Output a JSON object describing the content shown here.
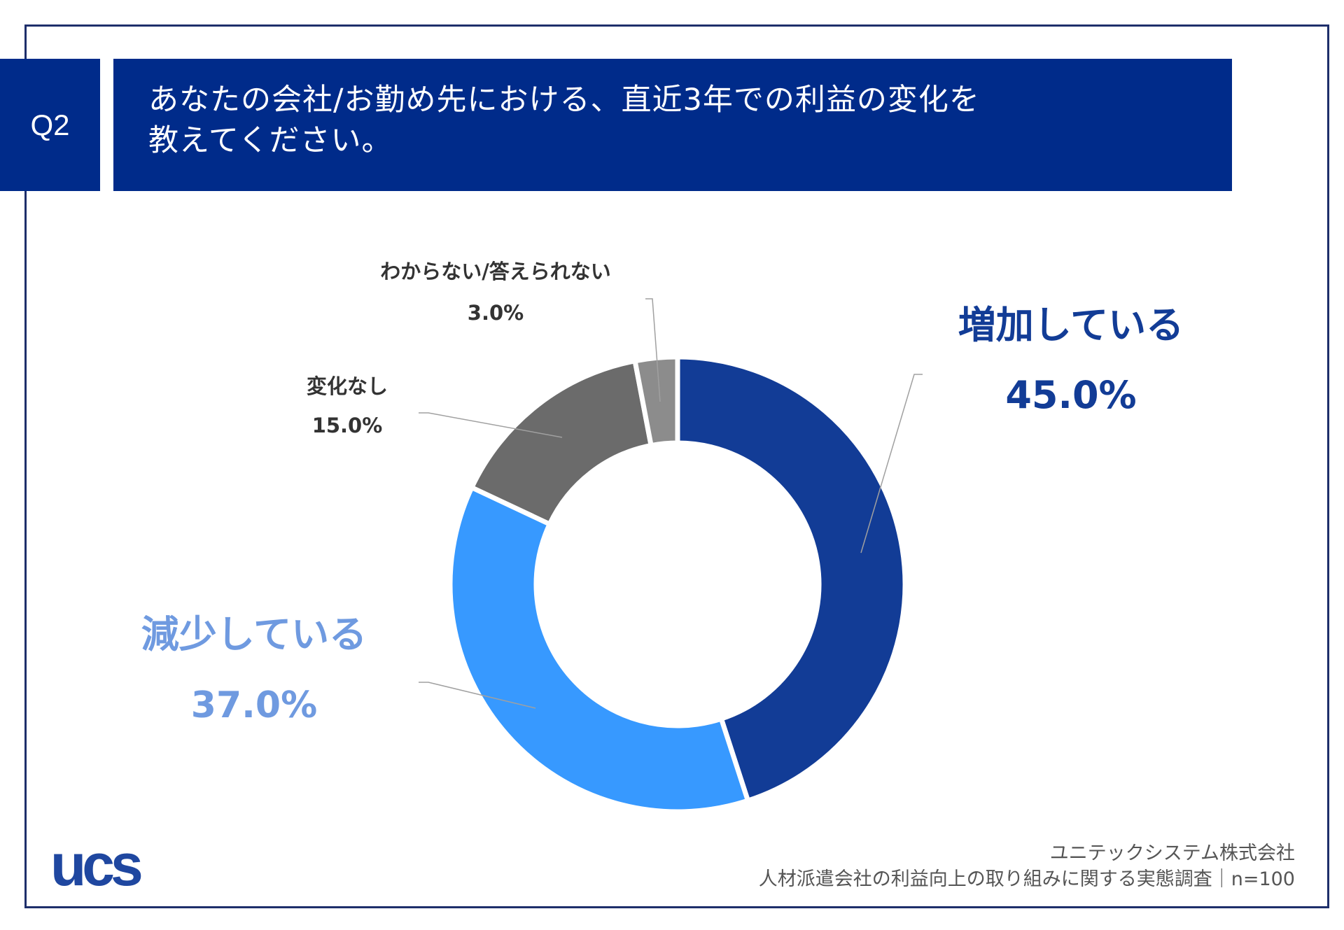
{
  "header": {
    "badge": "Q2",
    "title": "あなたの会社/お勤め先における、直近3年での利益の変化を\n教えてください。"
  },
  "colors": {
    "header_bg": "#002b8a",
    "frame": "#1e2f6b",
    "increase": "#123c96",
    "decrease": "#3799ff",
    "no_change": "#6b6b6b",
    "unknown": "#8c8c8c"
  },
  "chart_data": {
    "type": "pie",
    "donut": true,
    "slices": [
      {
        "label": "増加している",
        "value": 45.0,
        "display": "45.0%",
        "color": "#123c96",
        "label_color": "#123c96"
      },
      {
        "label": "減少している",
        "value": 37.0,
        "display": "37.0%",
        "color": "#3799ff",
        "label_color": "#6f9ae0"
      },
      {
        "label": "変化なし",
        "value": 15.0,
        "display": "15.0%",
        "color": "#6b6b6b",
        "label_color": "#333333"
      },
      {
        "label": "わからない/答えられない",
        "value": 3.0,
        "display": "3.0%",
        "color": "#8c8c8c",
        "label_color": "#333333"
      }
    ]
  },
  "footer": {
    "company": "ユニテックシステム株式会社",
    "survey": "人材派遣会社の利益向上の取り組みに関する実態調査｜n=100"
  },
  "logo": {
    "text": "ucs",
    "color": "#1f47a0"
  }
}
